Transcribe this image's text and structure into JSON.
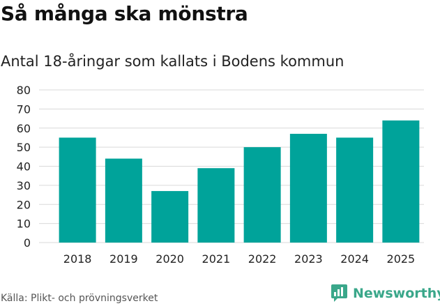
{
  "header": {
    "title": "Så många ska mönstra",
    "subtitle": "Antal 18-åringar som kallats i Bodens kommun"
  },
  "footer": {
    "source": "Källa: Plikt- och prövningsverket",
    "brand": "Newsworthy",
    "brand_icon": "newsworthy-logo-icon"
  },
  "colors": {
    "bar": "#00a39a",
    "grid": "#d9d9d9",
    "brand": "#3aa78a"
  },
  "chart_data": {
    "type": "bar",
    "categories": [
      "2018",
      "2019",
      "2020",
      "2021",
      "2022",
      "2023",
      "2024",
      "2025"
    ],
    "values": [
      55,
      44,
      27,
      39,
      50,
      57,
      55,
      64
    ],
    "ylim": [
      0,
      80
    ],
    "yticks": [
      0,
      10,
      20,
      30,
      40,
      50,
      60,
      70,
      80
    ],
    "grid": true,
    "legend": "none"
  }
}
